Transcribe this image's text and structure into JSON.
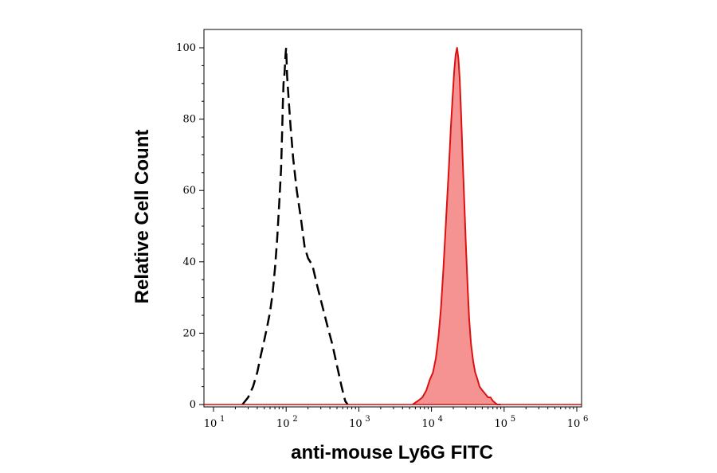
{
  "chart_data": {
    "type": "area",
    "xlabel": "anti-mouse Ly6G FITC",
    "ylabel": "Relative Cell Count",
    "x_scale": "log",
    "xlim": [
      10,
      1000000
    ],
    "ylim": [
      0,
      100
    ],
    "grid": false,
    "x_ticks": [
      {
        "base": "10",
        "exp": "1",
        "value": 10
      },
      {
        "base": "10",
        "exp": "2",
        "value": 100
      },
      {
        "base": "10",
        "exp": "3",
        "value": 1000
      },
      {
        "base": "10",
        "exp": "4",
        "value": 10000
      },
      {
        "base": "10",
        "exp": "5",
        "value": 100000
      },
      {
        "base": "10",
        "exp": "6",
        "value": 1000000
      }
    ],
    "y_ticks": [
      "0",
      "20",
      "40",
      "60",
      "80",
      "100"
    ],
    "series": [
      {
        "style": "dashed",
        "color": "#000000",
        "filled": false,
        "points": [
          [
            25,
            0
          ],
          [
            30,
            2
          ],
          [
            35,
            5
          ],
          [
            40,
            9
          ],
          [
            45,
            14
          ],
          [
            50,
            18
          ],
          [
            55,
            22
          ],
          [
            60,
            26
          ],
          [
            65,
            31
          ],
          [
            70,
            38
          ],
          [
            75,
            46
          ],
          [
            80,
            56
          ],
          [
            85,
            66
          ],
          [
            88,
            76
          ],
          [
            90,
            84
          ],
          [
            92,
            90
          ],
          [
            95,
            93
          ],
          [
            98,
            98
          ],
          [
            100,
            100
          ],
          [
            103,
            92
          ],
          [
            108,
            86
          ],
          [
            115,
            78
          ],
          [
            125,
            69
          ],
          [
            140,
            60
          ],
          [
            160,
            52
          ],
          [
            180,
            44
          ],
          [
            200,
            41
          ],
          [
            230,
            39
          ],
          [
            270,
            33
          ],
          [
            320,
            27
          ],
          [
            370,
            22
          ],
          [
            430,
            17
          ],
          [
            500,
            11
          ],
          [
            580,
            5
          ],
          [
            650,
            1
          ],
          [
            700,
            0
          ]
        ]
      },
      {
        "style": "solid",
        "color": "#dd1111",
        "fill_color": "#f59393",
        "filled": true,
        "points": [
          [
            5500,
            0
          ],
          [
            6500,
            1
          ],
          [
            7500,
            2
          ],
          [
            8500,
            4
          ],
          [
            9500,
            7
          ],
          [
            10500,
            9
          ],
          [
            11500,
            13
          ],
          [
            12500,
            19
          ],
          [
            13500,
            27
          ],
          [
            14500,
            37
          ],
          [
            15500,
            48
          ],
          [
            16500,
            58
          ],
          [
            17500,
            68
          ],
          [
            18500,
            78
          ],
          [
            19500,
            86
          ],
          [
            20500,
            93
          ],
          [
            21500,
            98
          ],
          [
            22500,
            100
          ],
          [
            23500,
            97
          ],
          [
            24500,
            91
          ],
          [
            25500,
            82
          ],
          [
            27000,
            68
          ],
          [
            28500,
            55
          ],
          [
            30000,
            43
          ],
          [
            31500,
            33
          ],
          [
            33000,
            24
          ],
          [
            35000,
            17
          ],
          [
            37500,
            12
          ],
          [
            40000,
            9
          ],
          [
            43000,
            7
          ],
          [
            46000,
            5
          ],
          [
            50000,
            4
          ],
          [
            55000,
            3
          ],
          [
            60000,
            2
          ],
          [
            65000,
            2
          ],
          [
            70000,
            1
          ],
          [
            80000,
            0
          ],
          [
            90000,
            0
          ]
        ]
      }
    ]
  }
}
